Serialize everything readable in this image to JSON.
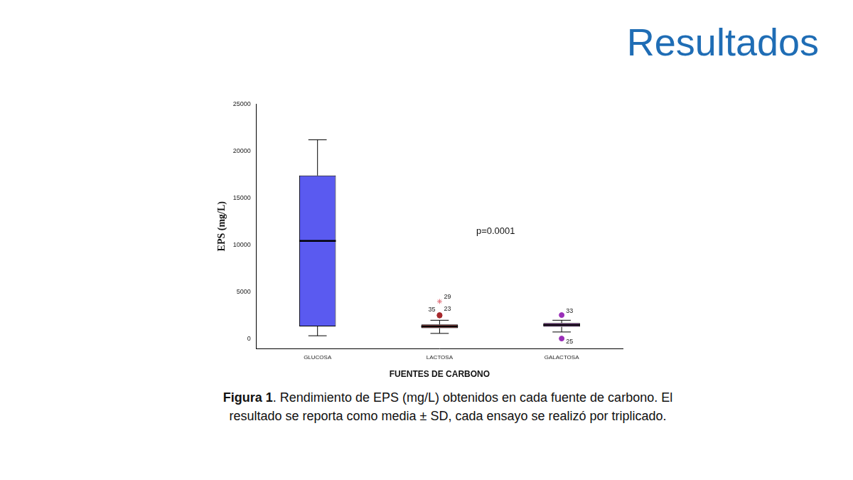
{
  "heading": "Resultados",
  "caption": "Figura 1. Rendimiento de EPS (mg/L) obtenidos en cada fuente de carbono. El resultado se reporta como media ± SD, cada ensayo se realizó por triplicado.",
  "chart_data": {
    "type": "boxplot",
    "x_label": "FUENTES DE CARBONO",
    "y_label": "EPS (mg/L)",
    "categories": [
      "GLUCOSA",
      "LACTOSA",
      "GALACTOSA"
    ],
    "boxes": [
      {
        "min": 350,
        "q1": 1350,
        "median": 10450,
        "q3": 17400,
        "max": 21200
      },
      {
        "min": 600,
        "q1": 1150,
        "median": 1350,
        "q3": 1550,
        "max": 2000
      },
      {
        "min": 750,
        "q1": 1300,
        "median": 1500,
        "q3": 1700,
        "max": 2000
      }
    ],
    "colors": [
      "#5a5af0",
      "#a5282c",
      "#9a2fb8"
    ],
    "outliers": [
      {
        "category": "LACTOSA",
        "value": 4000,
        "label": "29",
        "marker": "star",
        "color": "#e0707a"
      },
      {
        "category": "LACTOSA",
        "value": 2500,
        "label": "35",
        "marker": "circle",
        "color": "#a5282c"
      },
      {
        "category": "LACTOSA",
        "value": 2550,
        "label": "23",
        "marker": "circle",
        "color": "#a5282c"
      },
      {
        "category": "GALACTOSA",
        "value": 2550,
        "label": "33",
        "marker": "circle",
        "color": "#9a2fb8"
      },
      {
        "category": "GALACTOSA",
        "value": 50,
        "label": "25",
        "marker": "circle",
        "color": "#9a2fb8"
      }
    ],
    "annotation": "p=0.0001",
    "ylim": [
      -1000,
      25000
    ],
    "yticks": [
      0,
      5000,
      10000,
      15000,
      20000,
      25000
    ],
    "grid": false
  }
}
